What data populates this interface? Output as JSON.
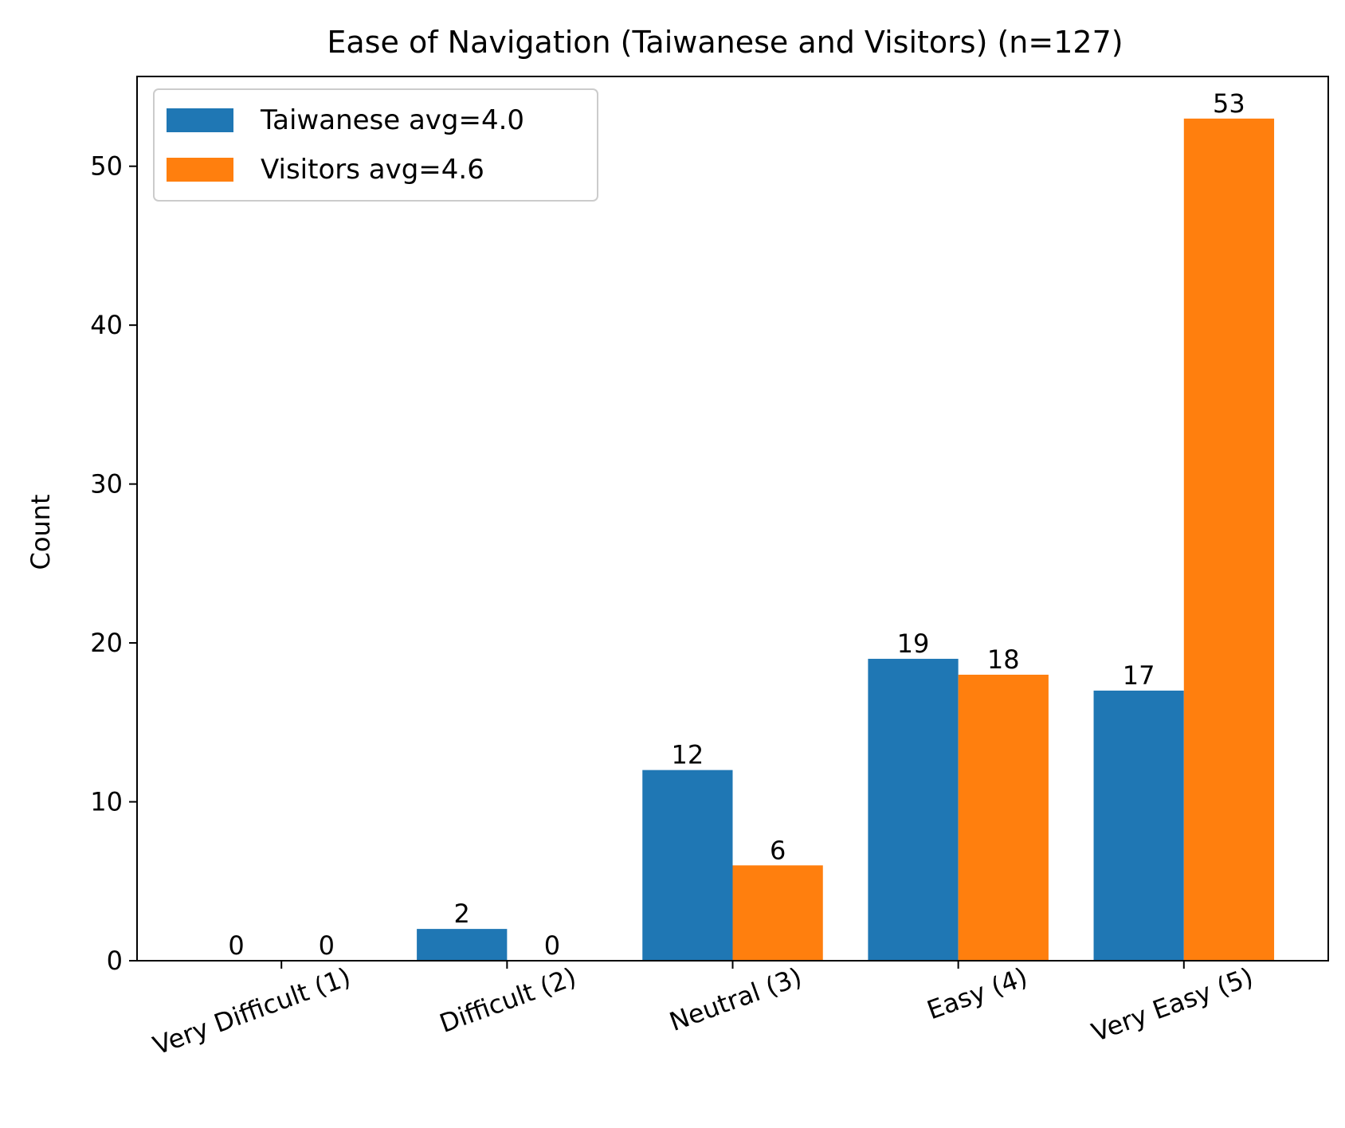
{
  "chart_data": {
    "type": "bar",
    "title": "Ease of Navigation (Taiwanese and Visitors) (n=127)",
    "xlabel": "",
    "ylabel": "Count",
    "categories": [
      "Very Difficult (1)",
      "Difficult (2)",
      "Neutral (3)",
      "Easy (4)",
      "Very Easy (5)"
    ],
    "series": [
      {
        "name": "Taiwanese avg=4.0",
        "values": [
          0,
          2,
          12,
          19,
          17
        ],
        "color": "#1f77b4"
      },
      {
        "name": "Visitors avg=4.6",
        "values": [
          0,
          0,
          6,
          18,
          53
        ],
        "color": "#ff7f0e"
      }
    ],
    "ylim": [
      0,
      55.65
    ],
    "yticks": [
      0,
      10,
      20,
      30,
      40,
      50
    ],
    "grid": false,
    "legend_position": "upper-left",
    "show_data_labels": true,
    "xtick_rotation": -20
  }
}
